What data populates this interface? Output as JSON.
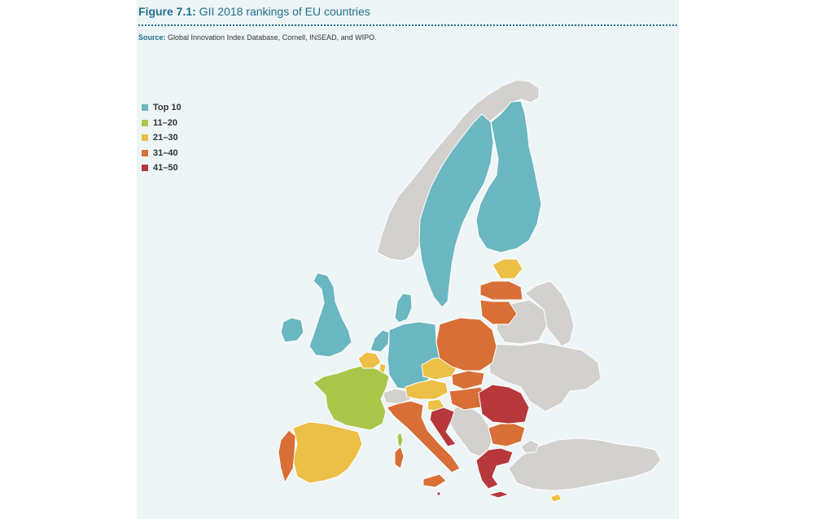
{
  "header": {
    "figure_label": "Figure 7.1:",
    "title": " GII 2018 rankings of EU countries",
    "source_label": "Source:",
    "source_text": " Global Innovation Index Database, Cornell, INSEAD, and WIPO."
  },
  "legend": {
    "items": [
      {
        "label": "Top 10",
        "color": "#6bb7c1"
      },
      {
        "label": "11–20",
        "color": "#a9c64a"
      },
      {
        "label": "21–30",
        "color": "#ecc046"
      },
      {
        "label": "31–40",
        "color": "#d86f36"
      },
      {
        "label": "41–50",
        "color": "#b7383b"
      }
    ]
  },
  "colors": {
    "non_eu": "#d3d1cd",
    "border": "#ffffff",
    "panel": "#eef5f7",
    "accent": "#1f6f8b"
  }
}
